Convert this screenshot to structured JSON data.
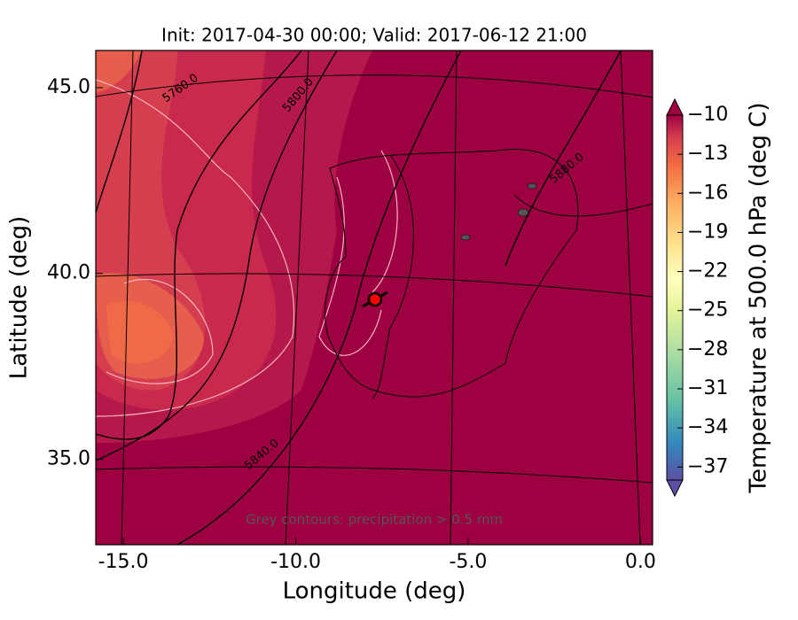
{
  "chart_data": {
    "type": "contour",
    "title": "Init: 2017-04-30 00:00; Valid: 2017-06-12 21:00",
    "xlabel": "Longitude (deg)",
    "ylabel": "Latitude (deg)",
    "xlim": [
      -15.8,
      0.35
    ],
    "ylim": [
      32.7,
      46
    ],
    "xticks": [
      {
        "value": -15,
        "label": "-15.0"
      },
      {
        "value": -10,
        "label": "-10.0"
      },
      {
        "value": -5,
        "label": "-5.0"
      },
      {
        "value": 0,
        "label": "0.0"
      }
    ],
    "yticks": [
      {
        "value": 35,
        "label": "35.0"
      },
      {
        "value": 40,
        "label": "40.0"
      },
      {
        "value": 45,
        "label": "45.0"
      }
    ],
    "colorbar": {
      "label": "Temperature at 500.0 hPa (deg C)",
      "lim": [
        -38,
        -10
      ],
      "ticks": [
        {
          "value": -10,
          "label": "−10"
        },
        {
          "value": -13,
          "label": "−13"
        },
        {
          "value": -16,
          "label": "−16"
        },
        {
          "value": -19,
          "label": "−19"
        },
        {
          "value": -22,
          "label": "−22"
        },
        {
          "value": -25,
          "label": "−25"
        },
        {
          "value": -28,
          "label": "−28"
        },
        {
          "value": -31,
          "label": "−31"
        },
        {
          "value": -34,
          "label": "−34"
        },
        {
          "value": -37,
          "label": "−37"
        }
      ]
    },
    "contour_labels": [
      "5760.0",
      "5800.0",
      "5840.0",
      "5880.0"
    ],
    "annotation": "Grey contours: precipitation > 0.5 mm",
    "marker": {
      "x": -7.7,
      "y": 39.3,
      "color": "#ff0000"
    }
  }
}
